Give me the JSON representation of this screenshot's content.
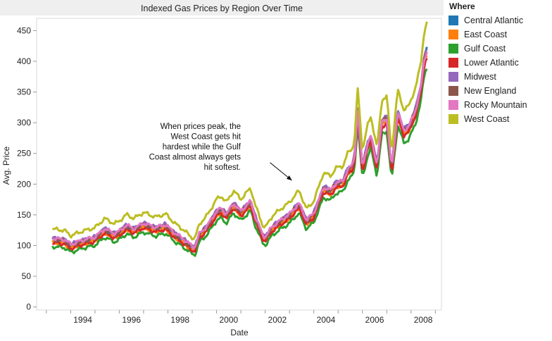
{
  "chart_data": {
    "type": "line",
    "title": "Indexed Gas Prices by Region Over Time",
    "xlabel": "Date",
    "ylabel": "Avg. Price",
    "xlim": [
      1992.6,
      2009.25
    ],
    "ylim": [
      -5,
      470
    ],
    "x_ticks": [
      "1994",
      "1996",
      "1998",
      "2000",
      "2002",
      "2004",
      "2006",
      "2008"
    ],
    "y_ticks": [
      "0",
      "50",
      "100",
      "150",
      "200",
      "250",
      "300",
      "350",
      "400",
      "450"
    ],
    "grid": false,
    "legend_title": "Where",
    "legend_position": "right",
    "annotation": {
      "lines": [
        "When prices peak, the",
        "West Coast gets hit",
        "hardest while the Gulf",
        "Coast almost always gets",
        "hit softest."
      ],
      "arrow_tail": [
        2002.2,
        235
      ],
      "arrow_head": [
        2003.1,
        206
      ]
    },
    "base_x": [
      1993.25,
      1993.75,
      1994.0,
      1994.5,
      1995.0,
      1995.4,
      1995.8,
      1996.0,
      1996.3,
      1996.6,
      1997.0,
      1997.5,
      1997.9,
      1998.3,
      1998.6,
      1999.0,
      1999.1,
      1999.3,
      1999.6,
      2000.0,
      2000.2,
      2000.4,
      2000.7,
      2001.0,
      2001.4,
      2001.6,
      2001.9,
      2002.0,
      2002.3,
      2002.7,
      2003.0,
      2003.2,
      2003.4,
      2003.7,
      2004.0,
      2004.4,
      2004.7,
      2004.9,
      2005.2,
      2005.4,
      2005.6,
      2005.7,
      2005.8,
      2006.0,
      2006.2,
      2006.35,
      2006.6,
      2006.8,
      2007.0,
      2007.2,
      2007.45,
      2007.7,
      2007.9,
      2008.0,
      2008.2,
      2008.4,
      2008.55,
      2008.65
    ],
    "base_values": [
      110,
      108,
      100,
      107,
      112,
      126,
      118,
      122,
      132,
      126,
      135,
      128,
      133,
      118,
      110,
      97,
      95,
      118,
      130,
      155,
      160,
      150,
      168,
      155,
      172,
      145,
      116,
      112,
      130,
      142,
      150,
      160,
      168,
      140,
      152,
      195,
      190,
      202,
      205,
      225,
      232,
      255,
      325,
      228,
      265,
      280,
      232,
      305,
      310,
      225,
      320,
      290,
      295,
      305,
      325,
      360,
      410,
      420
    ],
    "series": [
      {
        "name": "Central Atlantic",
        "offset": 0,
        "scale": 1.0,
        "color": "#1f77b4"
      },
      {
        "name": "East Coast",
        "offset": -3,
        "scale": 0.98,
        "color": "#ff7f0e"
      },
      {
        "name": "Gulf Coast",
        "offset": -5,
        "scale": 0.94,
        "color": "#2ca02c"
      },
      {
        "name": "Lower Atlantic",
        "offset": -2,
        "scale": 0.97,
        "color": "#d62728"
      },
      {
        "name": "Midwest",
        "offset": 3,
        "scale": 0.99,
        "color": "#9467bd"
      },
      {
        "name": "New England",
        "offset": 1,
        "scale": 0.99,
        "color": "#8c564b"
      },
      {
        "name": "Rocky Mountain",
        "offset": 4,
        "scale": 0.98,
        "color": "#e377c2"
      },
      {
        "name": "West Coast",
        "offset": 8,
        "scale": 1.08,
        "color": "#bcbd22"
      }
    ]
  }
}
